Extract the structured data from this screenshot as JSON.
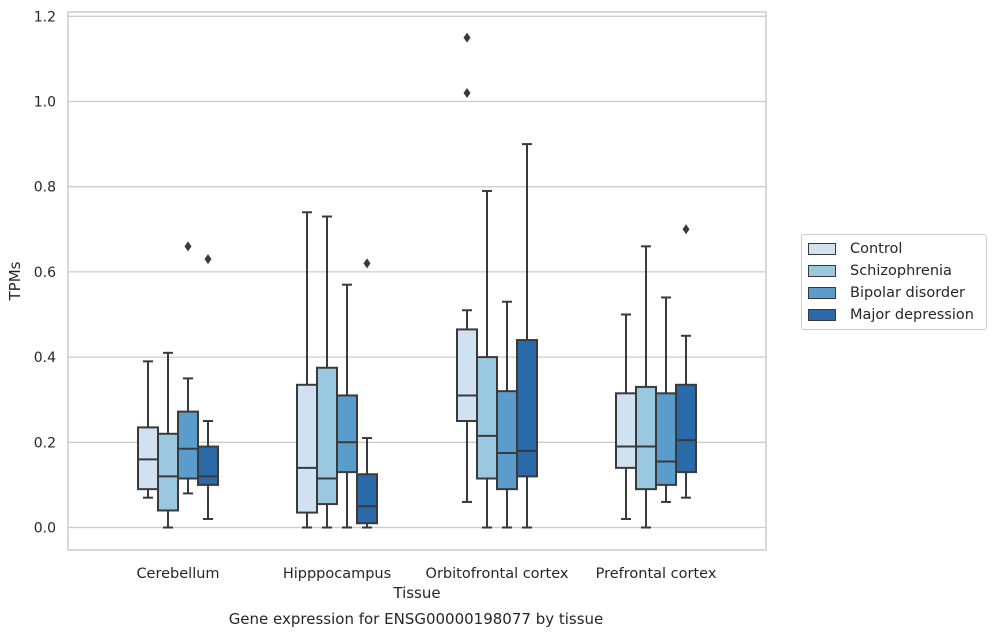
{
  "chart_data": {
    "type": "box",
    "title": "Gene expression for ENSG00000198077 by tissue",
    "xlabel": "Tissue",
    "ylabel": "TPMs",
    "ylim": [
      -0.055,
      1.21
    ],
    "yticks": [
      "0.0",
      "0.2",
      "0.4",
      "0.6",
      "0.8",
      "1.0",
      "1.2"
    ],
    "grid": "horizontal",
    "legend_position": "right",
    "categories": [
      "Cerebellum",
      "Hipppocampus",
      "Orbitofrontal cortex",
      "Prefrontal cortex"
    ],
    "series": [
      {
        "name": "Control",
        "color": "#d0e2f2",
        "boxes": [
          {
            "whislo": 0.07,
            "q1": 0.09,
            "med": 0.16,
            "q3": 0.235,
            "whishi": 0.39,
            "fliers": []
          },
          {
            "whislo": 0.0,
            "q1": 0.035,
            "med": 0.14,
            "q3": 0.335,
            "whishi": 0.74,
            "fliers": []
          },
          {
            "whislo": 0.06,
            "q1": 0.25,
            "med": 0.31,
            "q3": 0.465,
            "whishi": 0.51,
            "fliers": [
              1.02,
              1.15
            ]
          },
          {
            "whislo": 0.02,
            "q1": 0.14,
            "med": 0.19,
            "q3": 0.315,
            "whishi": 0.5,
            "fliers": []
          }
        ]
      },
      {
        "name": "Schizophrenia",
        "color": "#9ac8e0",
        "boxes": [
          {
            "whislo": 0.0,
            "q1": 0.04,
            "med": 0.12,
            "q3": 0.22,
            "whishi": 0.41,
            "fliers": []
          },
          {
            "whislo": 0.0,
            "q1": 0.055,
            "med": 0.115,
            "q3": 0.375,
            "whishi": 0.73,
            "fliers": []
          },
          {
            "whislo": 0.0,
            "q1": 0.115,
            "med": 0.215,
            "q3": 0.4,
            "whishi": 0.79,
            "fliers": []
          },
          {
            "whislo": 0.0,
            "q1": 0.09,
            "med": 0.19,
            "q3": 0.33,
            "whishi": 0.66,
            "fliers": []
          }
        ]
      },
      {
        "name": "Bipolar disorder",
        "color": "#5a9ccb",
        "boxes": [
          {
            "whislo": 0.08,
            "q1": 0.115,
            "med": 0.185,
            "q3": 0.272,
            "whishi": 0.35,
            "fliers": [
              0.66
            ]
          },
          {
            "whislo": 0.0,
            "q1": 0.13,
            "med": 0.2,
            "q3": 0.31,
            "whishi": 0.57,
            "fliers": []
          },
          {
            "whislo": 0.0,
            "q1": 0.09,
            "med": 0.175,
            "q3": 0.32,
            "whishi": 0.53,
            "fliers": []
          },
          {
            "whislo": 0.06,
            "q1": 0.1,
            "med": 0.155,
            "q3": 0.315,
            "whishi": 0.54,
            "fliers": []
          }
        ]
      },
      {
        "name": "Major depression",
        "color": "#2a6aa9",
        "boxes": [
          {
            "whislo": 0.02,
            "q1": 0.1,
            "med": 0.12,
            "q3": 0.19,
            "whishi": 0.25,
            "fliers": [
              0.63
            ]
          },
          {
            "whislo": 0.0,
            "q1": 0.01,
            "med": 0.05,
            "q3": 0.125,
            "whishi": 0.21,
            "fliers": [
              0.62
            ]
          },
          {
            "whislo": 0.0,
            "q1": 0.12,
            "med": 0.18,
            "q3": 0.44,
            "whishi": 0.9,
            "fliers": []
          },
          {
            "whislo": 0.07,
            "q1": 0.13,
            "med": 0.205,
            "q3": 0.335,
            "whishi": 0.45,
            "fliers": [
              0.7
            ]
          }
        ]
      }
    ]
  }
}
